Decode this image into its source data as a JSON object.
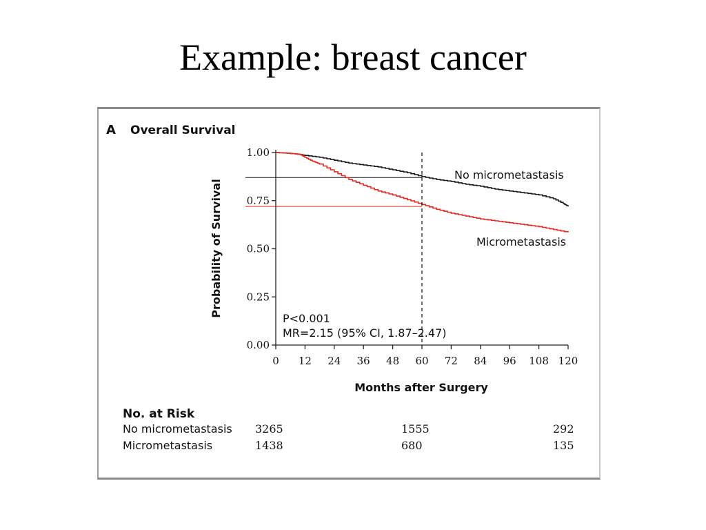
{
  "slide": {
    "title": "Example: breast cancer"
  },
  "panel": {
    "letter": "A",
    "title": "Overall Survival"
  },
  "annotations": {
    "p_value": "P<0.001",
    "mr": "MR=2.15 (95% CI, 1.87–2.47)"
  },
  "risk_table": {
    "heading": "No. at Risk",
    "rows": [
      {
        "label": "No micrometastasis",
        "values": [
          "3265",
          "1555",
          "292"
        ]
      },
      {
        "label": "Micrometastasis",
        "values": [
          "1438",
          "680",
          "135"
        ]
      }
    ]
  },
  "colors": {
    "no_micro": "#1a1a1a",
    "micro": "#e8281e",
    "axis": "#222222"
  },
  "chart_data": {
    "type": "line",
    "xlabel": "Months after Surgery",
    "ylabel": "Probability of Survival",
    "xlim": [
      0,
      120
    ],
    "ylim": [
      0,
      1
    ],
    "xticks": [
      0,
      12,
      24,
      36,
      48,
      60,
      72,
      84,
      96,
      108,
      120
    ],
    "yticks": [
      "0.00",
      "0.25",
      "0.50",
      "0.75",
      "1.00"
    ],
    "reference_x": 60,
    "series": [
      {
        "name": "No micrometastasis",
        "color": "#1a1a1a",
        "x": [
          0,
          6,
          10,
          12,
          18,
          24,
          30,
          36,
          42,
          48,
          54,
          60,
          66,
          72,
          78,
          84,
          90,
          96,
          102,
          108,
          114,
          118,
          120
        ],
        "y": [
          1.0,
          0.995,
          0.99,
          0.985,
          0.975,
          0.96,
          0.945,
          0.935,
          0.925,
          0.91,
          0.895,
          0.875,
          0.86,
          0.85,
          0.835,
          0.825,
          0.81,
          0.8,
          0.79,
          0.78,
          0.76,
          0.735,
          0.72
        ]
      },
      {
        "name": "Micrometastasis",
        "color": "#e8281e",
        "x": [
          0,
          6,
          10,
          12,
          15,
          18,
          24,
          30,
          36,
          42,
          48,
          54,
          60,
          66,
          72,
          78,
          84,
          90,
          96,
          102,
          108,
          114,
          120
        ],
        "y": [
          1.0,
          0.995,
          0.99,
          0.975,
          0.955,
          0.94,
          0.9,
          0.86,
          0.83,
          0.8,
          0.78,
          0.755,
          0.73,
          0.705,
          0.685,
          0.67,
          0.655,
          0.645,
          0.635,
          0.625,
          0.615,
          0.6,
          0.585
        ]
      }
    ],
    "reference_lines": [
      {
        "y": 0.87,
        "color": "#1a1a1a"
      },
      {
        "y": 0.72,
        "color": "#e8281e"
      }
    ]
  }
}
